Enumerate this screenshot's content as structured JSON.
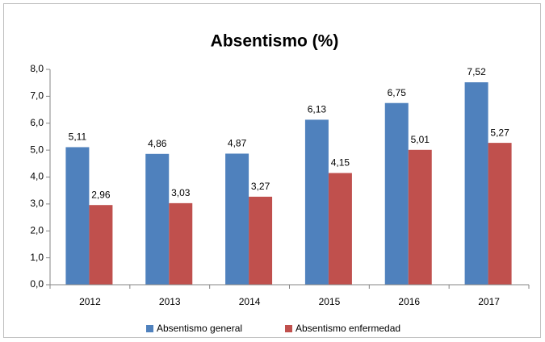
{
  "chart_data": {
    "type": "bar",
    "title": "Absentismo (%)",
    "categories": [
      "2012",
      "2013",
      "2014",
      "2015",
      "2016",
      "2017"
    ],
    "series": [
      {
        "name": "Absentismo general",
        "color": "#4f81bd",
        "values": [
          5.11,
          4.86,
          4.87,
          6.13,
          6.75,
          7.52
        ],
        "value_labels": [
          "5,11",
          "4,86",
          "4,87",
          "6,13",
          "6,75",
          "7,52"
        ]
      },
      {
        "name": "Absentismo enfermedad",
        "color": "#c0504d",
        "values": [
          2.96,
          3.03,
          3.27,
          4.15,
          5.01,
          5.27
        ],
        "value_labels": [
          "2,96",
          "3,03",
          "3,27",
          "4,15",
          "5,01",
          "5,27"
        ]
      }
    ],
    "ylim": [
      0,
      8
    ],
    "yticks": [
      {
        "value": 0,
        "label": "0,0"
      },
      {
        "value": 1,
        "label": "1,0"
      },
      {
        "value": 2,
        "label": "2,0"
      },
      {
        "value": 3,
        "label": "3,0"
      },
      {
        "value": 4,
        "label": "4,0"
      },
      {
        "value": 5,
        "label": "5,0"
      },
      {
        "value": 6,
        "label": "6,0"
      },
      {
        "value": 7,
        "label": "7,0"
      },
      {
        "value": 8,
        "label": "8,0"
      }
    ],
    "grid": false,
    "legend": "bottom"
  }
}
